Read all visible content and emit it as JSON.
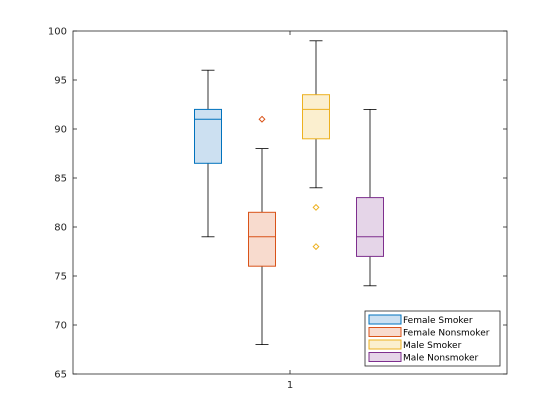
{
  "chart_data": {
    "type": "box",
    "x_tick_labels": [
      "1"
    ],
    "ylim": [
      65,
      100
    ],
    "y_ticks": [
      65,
      70,
      75,
      80,
      85,
      90,
      95,
      100
    ],
    "grid": false,
    "legend_position": "bottom-right",
    "series": [
      {
        "name": "Female Smoker",
        "color": "#0072BD",
        "fill": "#CCE0F1",
        "whisker_low": 79,
        "q1": 86.5,
        "median": 91,
        "q3": 92,
        "whisker_high": 96,
        "outliers": []
      },
      {
        "name": "Female Nonsmoker",
        "color": "#D95319",
        "fill": "#F8DBCE",
        "whisker_low": 68,
        "q1": 76,
        "median": 79,
        "q3": 81.5,
        "whisker_high": 88,
        "outliers": [
          91
        ]
      },
      {
        "name": "Male Smoker",
        "color": "#EDB120",
        "fill": "#FBEFCF",
        "whisker_low": 84,
        "q1": 89,
        "median": 92,
        "q3": 93.5,
        "whisker_high": 99,
        "outliers": [
          82,
          78
        ]
      },
      {
        "name": "Male Nonsmoker",
        "color": "#7E2F8E",
        "fill": "#E5D5E8",
        "whisker_low": 74,
        "q1": 77,
        "median": 79,
        "q3": 83,
        "whisker_high": 92,
        "outliers": []
      }
    ]
  }
}
